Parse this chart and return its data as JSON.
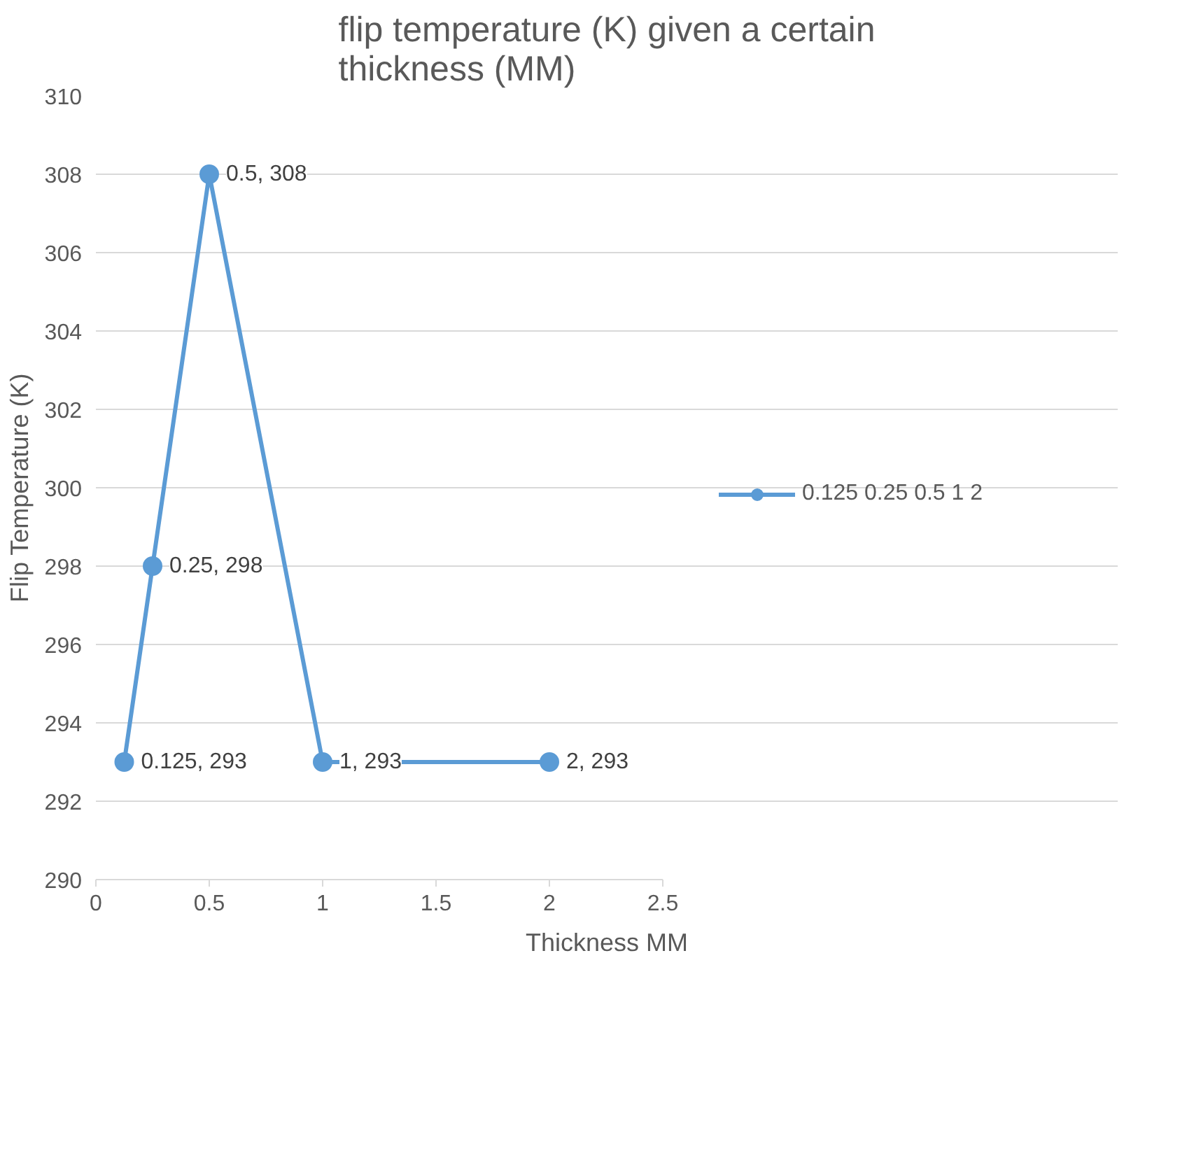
{
  "chart_data": {
    "type": "line",
    "title": "flip temperature (K) given a certain thickness (MM)",
    "xlabel": "Thickness MM",
    "ylabel": "Flip Temperature (K)",
    "x": [
      0.125,
      0.25,
      0.5,
      1,
      2
    ],
    "series": [
      {
        "name": "0.125 0.25 0.5 1 2",
        "color": "#5b9bd5",
        "values": [
          293,
          298,
          308,
          293,
          293
        ],
        "value_labels": [
          "0.125, 293",
          "0.25, 298",
          "0.5, 308",
          "1, 293",
          "2, 293"
        ]
      }
    ],
    "xlim": [
      0,
      2.5
    ],
    "xticks": [
      0,
      0.5,
      1,
      1.5,
      2,
      2.5
    ],
    "ylim": [
      290,
      310
    ],
    "yticks": [
      290,
      292,
      294,
      296,
      298,
      300,
      302,
      304,
      306,
      308,
      310
    ],
    "grid": "y",
    "legend": "right",
    "marker": "circle",
    "line_style": "solid"
  }
}
